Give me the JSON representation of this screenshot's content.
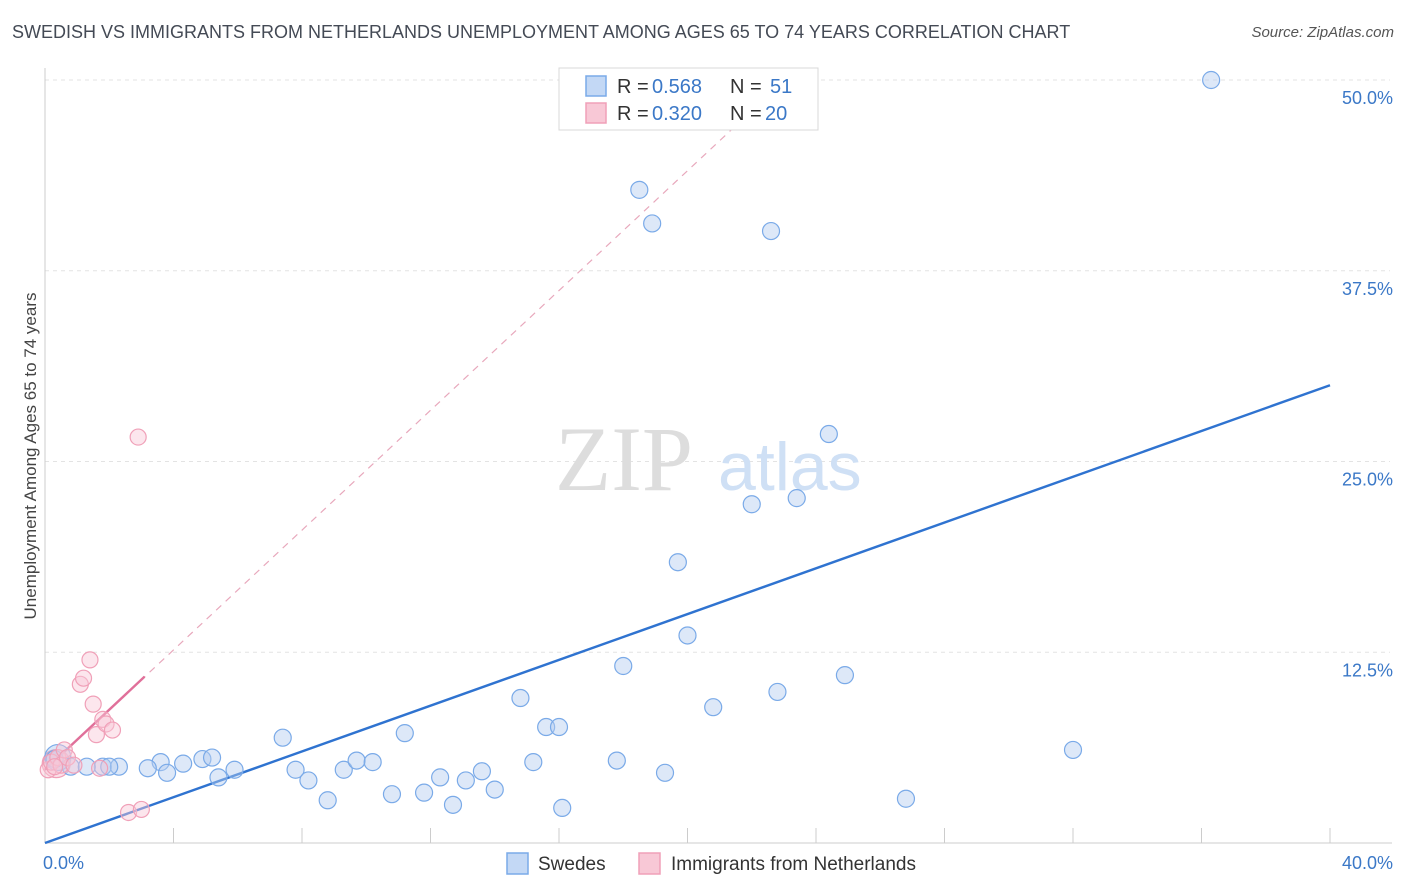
{
  "title": "SWEDISH VS IMMIGRANTS FROM NETHERLANDS UNEMPLOYMENT AMONG AGES 65 TO 74 YEARS CORRELATION CHART",
  "source": "Source: ZipAtlas.com",
  "watermark": {
    "zip": "ZIP",
    "atlas": "atlas"
  },
  "colors": {
    "swedes": "#7aaae8",
    "swedes_line": "#2f73d0",
    "netherlands": "#f0a0b8",
    "netherlands_line": "#e0709a"
  },
  "legend": {
    "rows": [
      {
        "r_label": "R =",
        "r_value": "0.568",
        "n_label": "N =",
        "n_value": "51"
      },
      {
        "r_label": "R =",
        "r_value": "0.320",
        "n_label": "N =",
        "n_value": "20"
      }
    ]
  },
  "bottom_legend": [
    "Swedes",
    "Immigrants from Netherlands"
  ],
  "chart_data": {
    "type": "scatter",
    "title": "SWEDISH VS IMMIGRANTS FROM NETHERLANDS UNEMPLOYMENT AMONG AGES 65 TO 74 YEARS CORRELATION CHART",
    "xlabel": "",
    "ylabel": "Unemployment Among Ages 65 to 74 years",
    "xlim": [
      0,
      40
    ],
    "ylim": [
      0,
      50
    ],
    "x_tick_labels": [
      "0.0%",
      "40.0%"
    ],
    "y_ticks": [
      12.5,
      25,
      37.5,
      50
    ],
    "y_tick_labels": [
      "12.5%",
      "25.0%",
      "37.5%",
      "50.0%"
    ],
    "series": [
      {
        "name": "Swedes",
        "R": 0.568,
        "N": 51,
        "trend": {
          "x": [
            0,
            40
          ],
          "y": [
            0,
            30
          ]
        },
        "points": [
          [
            0.3,
            5.5
          ],
          [
            0.8,
            5.0
          ],
          [
            1.8,
            5.0
          ],
          [
            2.3,
            5.0
          ],
          [
            3.6,
            5.3
          ],
          [
            3.2,
            4.9
          ],
          [
            3.8,
            4.6
          ],
          [
            4.3,
            5.2
          ],
          [
            4.9,
            5.5
          ],
          [
            5.2,
            5.6
          ],
          [
            5.4,
            4.3
          ],
          [
            5.9,
            4.8
          ],
          [
            7.4,
            6.9
          ],
          [
            7.8,
            4.8
          ],
          [
            8.2,
            4.1
          ],
          [
            8.8,
            2.8
          ],
          [
            9.3,
            4.8
          ],
          [
            9.7,
            5.4
          ],
          [
            10.2,
            5.3
          ],
          [
            10.8,
            3.2
          ],
          [
            11.2,
            7.2
          ],
          [
            11.8,
            3.3
          ],
          [
            12.3,
            4.3
          ],
          [
            12.7,
            2.5
          ],
          [
            13.1,
            4.1
          ],
          [
            13.6,
            4.7
          ],
          [
            14.0,
            3.5
          ],
          [
            14.8,
            9.5
          ],
          [
            15.2,
            5.3
          ],
          [
            15.6,
            7.6
          ],
          [
            16.0,
            7.6
          ],
          [
            16.1,
            2.3
          ],
          [
            17.8,
            5.4
          ],
          [
            18.0,
            11.6
          ],
          [
            18.5,
            42.8
          ],
          [
            18.9,
            40.6
          ],
          [
            19.3,
            4.6
          ],
          [
            19.7,
            18.4
          ],
          [
            20.0,
            13.6
          ],
          [
            20.8,
            8.9
          ],
          [
            22.0,
            22.2
          ],
          [
            22.6,
            40.1
          ],
          [
            22.8,
            9.9
          ],
          [
            23.4,
            22.6
          ],
          [
            24.4,
            26.8
          ],
          [
            24.9,
            11.0
          ],
          [
            26.8,
            2.9
          ],
          [
            32.0,
            6.1
          ],
          [
            36.3,
            50.0
          ],
          [
            1.3,
            5.0
          ],
          [
            2.0,
            5.0
          ]
        ]
      },
      {
        "name": "Immigrants from Netherlands",
        "R": 0.32,
        "N": 20,
        "trend": {
          "x": [
            0,
            3.1
          ],
          "y": [
            4.8,
            10.9
          ]
        },
        "trend_extended": {
          "x": [
            0,
            21.5
          ],
          "y": [
            4.8,
            47.0
          ]
        },
        "points": [
          [
            0.1,
            4.8
          ],
          [
            0.2,
            5.3
          ],
          [
            0.4,
            5.6
          ],
          [
            0.5,
            5.1
          ],
          [
            0.6,
            6.1
          ],
          [
            0.7,
            5.6
          ],
          [
            0.9,
            5.1
          ],
          [
            1.1,
            10.4
          ],
          [
            1.2,
            10.8
          ],
          [
            1.4,
            12.0
          ],
          [
            1.5,
            9.1
          ],
          [
            1.6,
            7.1
          ],
          [
            1.8,
            8.1
          ],
          [
            1.9,
            7.8
          ],
          [
            2.1,
            7.4
          ],
          [
            1.7,
            4.9
          ],
          [
            2.6,
            2.0
          ],
          [
            3.0,
            2.2
          ],
          [
            2.9,
            26.6
          ],
          [
            0.3,
            5.0
          ]
        ]
      }
    ]
  }
}
